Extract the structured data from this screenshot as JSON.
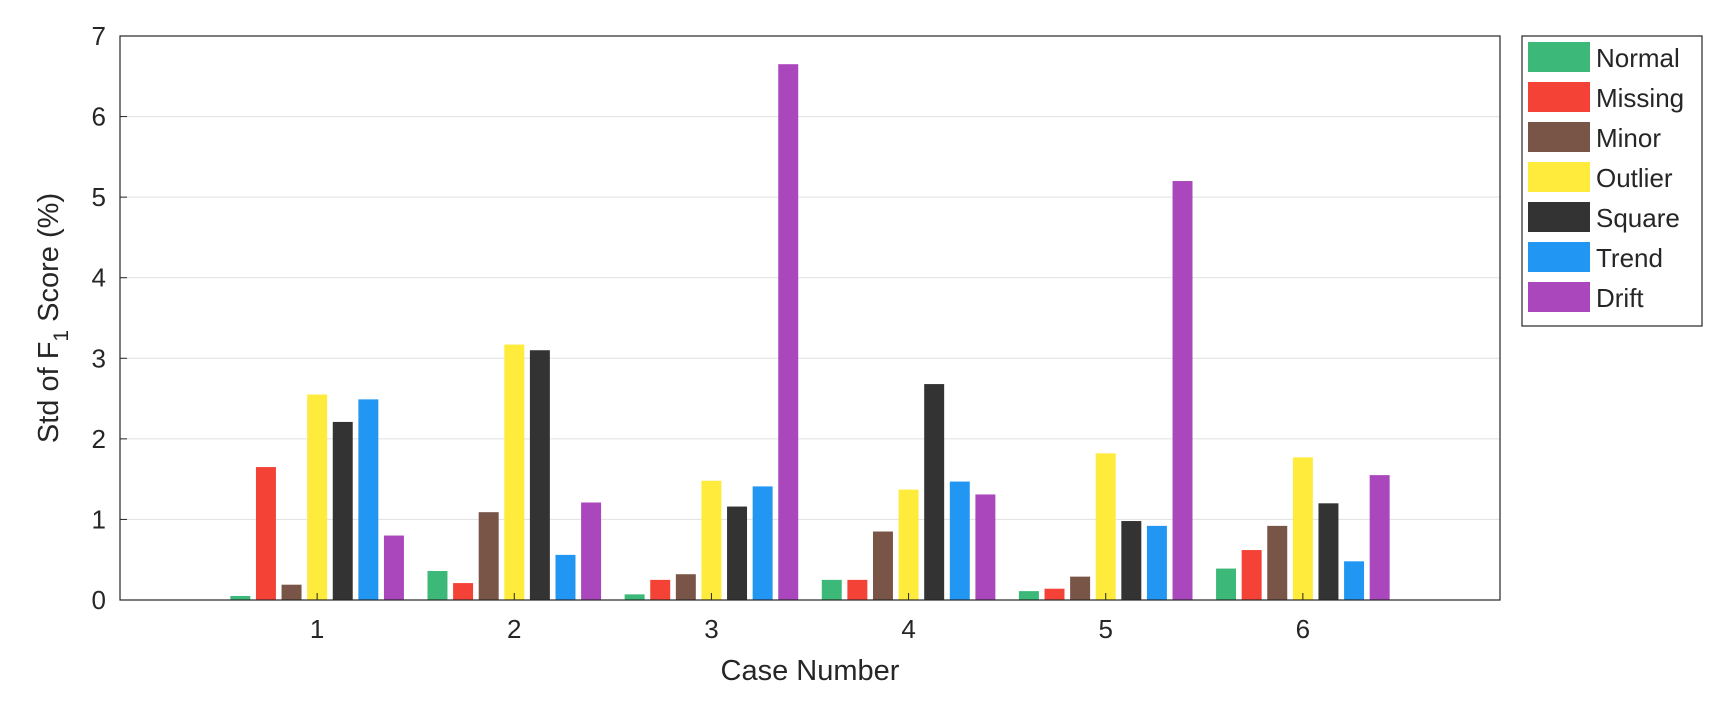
{
  "chart_data": {
    "type": "bar",
    "xlabel": "Case Number",
    "ylabel": {
      "prefix": "Std of F",
      "subscript": "1",
      "suffix": " Score (%)"
    },
    "categories": [
      "1",
      "2",
      "3",
      "4",
      "5",
      "6"
    ],
    "ylim": [
      0,
      7
    ],
    "yticks": [
      "0",
      "1",
      "2",
      "3",
      "4",
      "5",
      "6",
      "7"
    ],
    "grid": "horizontal",
    "legend_position": "outside-right-top",
    "series": [
      {
        "name": "Normal",
        "color": "#3cb878",
        "values": [
          0.05,
          0.36,
          0.07,
          0.25,
          0.11,
          0.39
        ]
      },
      {
        "name": "Missing",
        "color": "#f44336",
        "values": [
          1.65,
          0.21,
          0.25,
          0.25,
          0.14,
          0.62
        ]
      },
      {
        "name": "Minor",
        "color": "#795548",
        "values": [
          0.19,
          1.09,
          0.32,
          0.85,
          0.29,
          0.92
        ]
      },
      {
        "name": "Outlier",
        "color": "#ffeb3b",
        "values": [
          2.55,
          3.17,
          1.48,
          1.37,
          1.82,
          1.77
        ]
      },
      {
        "name": "Square",
        "color": "#333333",
        "values": [
          2.21,
          3.1,
          1.16,
          2.68,
          0.98,
          1.2
        ]
      },
      {
        "name": "Trend",
        "color": "#2196f3",
        "values": [
          2.49,
          0.56,
          1.41,
          1.47,
          0.92,
          0.48
        ]
      },
      {
        "name": "Drift",
        "color": "#ab47bc",
        "values": [
          0.8,
          1.21,
          6.65,
          1.31,
          5.2,
          1.55
        ]
      }
    ]
  }
}
